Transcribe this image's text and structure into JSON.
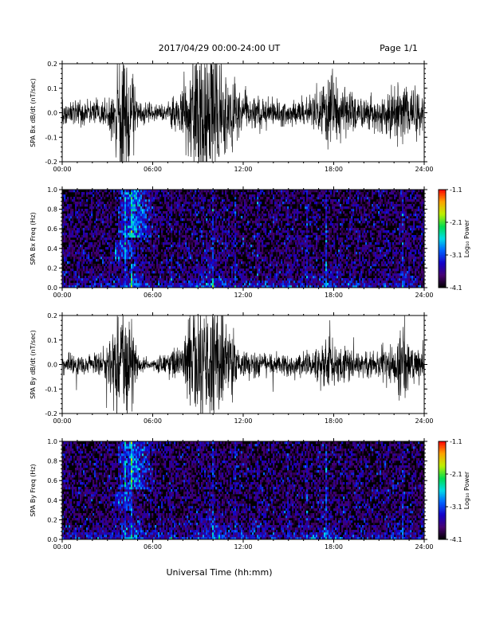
{
  "header": {
    "title": "2017/04/29  00:00-24:00 UT",
    "page": "Page 1/1"
  },
  "xlabel": "Universal Time (hh:mm)",
  "colors": {
    "trace": "#000000",
    "spectrogram_background": "#000000"
  },
  "chart_data": [
    {
      "type": "line",
      "ylabel": "SPA Bx dB/dt (nT/sec)",
      "xlim": [
        0,
        24
      ],
      "ylim": [
        -0.2,
        0.2
      ],
      "x_ticks": [
        "00:00",
        "06:00",
        "12:00",
        "18:00",
        "24:00"
      ],
      "y_ticks": [
        "-0.2",
        "-0.1",
        "0.0",
        "0.1",
        "0.2"
      ],
      "series": [
        {
          "envelope_hours": [
            0,
            2,
            3,
            3.5,
            4,
            4.6,
            5,
            6,
            7,
            8,
            8.6,
            9.2,
            10,
            10.5,
            11,
            12,
            13,
            14,
            15,
            16,
            17,
            17.6,
            18,
            18.5,
            19,
            20,
            21,
            22,
            22.5,
            23,
            24
          ],
          "envelope_amplitude": [
            0.05,
            0.05,
            0.06,
            0.12,
            0.25,
            0.2,
            0.05,
            0.03,
            0.04,
            0.1,
            0.25,
            0.28,
            0.28,
            0.25,
            0.2,
            0.08,
            0.06,
            0.05,
            0.05,
            0.06,
            0.08,
            0.15,
            0.15,
            0.12,
            0.08,
            0.06,
            0.08,
            0.1,
            0.14,
            0.1,
            0.08
          ]
        }
      ]
    },
    {
      "type": "heatmap",
      "ylabel": "SPA Bx Freq (Hz)",
      "xlim": [
        0,
        24
      ],
      "ylim": [
        0,
        1.0
      ],
      "x_ticks": [
        "00:00",
        "06:00",
        "12:00",
        "18:00",
        "24:00"
      ],
      "y_ticks": [
        "0.0",
        "0.2",
        "0.4",
        "0.6",
        "0.8",
        "1.0"
      ],
      "colorbar": {
        "label": "Log₁₀ Power",
        "range": [
          -4.1,
          -1.1
        ],
        "ticks": [
          "-1.1",
          "-2.1",
          "-3.1",
          "-4.1"
        ]
      }
    },
    {
      "type": "line",
      "ylabel": "SPA By dB/dt (nT/sec)",
      "xlim": [
        0,
        24
      ],
      "ylim": [
        -0.2,
        0.2
      ],
      "x_ticks": [
        "00:00",
        "06:00",
        "12:00",
        "18:00",
        "24:00"
      ],
      "y_ticks": [
        "-0.2",
        "-0.1",
        "0.0",
        "0.1",
        "0.2"
      ],
      "series": [
        {
          "envelope_hours": [
            0,
            2,
            3,
            3.5,
            4,
            4.6,
            5,
            6,
            7,
            8,
            8.6,
            9.2,
            10,
            10.5,
            11,
            12,
            13,
            14,
            15,
            16,
            17,
            17.6,
            18,
            18.5,
            19,
            20,
            21,
            22,
            22.5,
            23,
            24
          ],
          "envelope_amplitude": [
            0.04,
            0.04,
            0.08,
            0.2,
            0.28,
            0.15,
            0.04,
            0.02,
            0.05,
            0.08,
            0.22,
            0.28,
            0.28,
            0.22,
            0.15,
            0.06,
            0.05,
            0.04,
            0.04,
            0.05,
            0.07,
            0.12,
            0.1,
            0.08,
            0.06,
            0.05,
            0.06,
            0.08,
            0.2,
            0.08,
            0.06
          ]
        }
      ]
    },
    {
      "type": "heatmap",
      "ylabel": "SPA By Freq (Hz)",
      "xlim": [
        0,
        24
      ],
      "ylim": [
        0,
        1.0
      ],
      "x_ticks": [
        "00:00",
        "06:00",
        "12:00",
        "18:00",
        "24:00"
      ],
      "y_ticks": [
        "0.0",
        "0.2",
        "0.4",
        "0.6",
        "0.8",
        "1.0"
      ],
      "colorbar": {
        "label": "Log₁₀ Power",
        "range": [
          -4.1,
          -1.1
        ],
        "ticks": [
          "-1.1",
          "-2.1",
          "-3.1",
          "-4.1"
        ]
      }
    }
  ]
}
